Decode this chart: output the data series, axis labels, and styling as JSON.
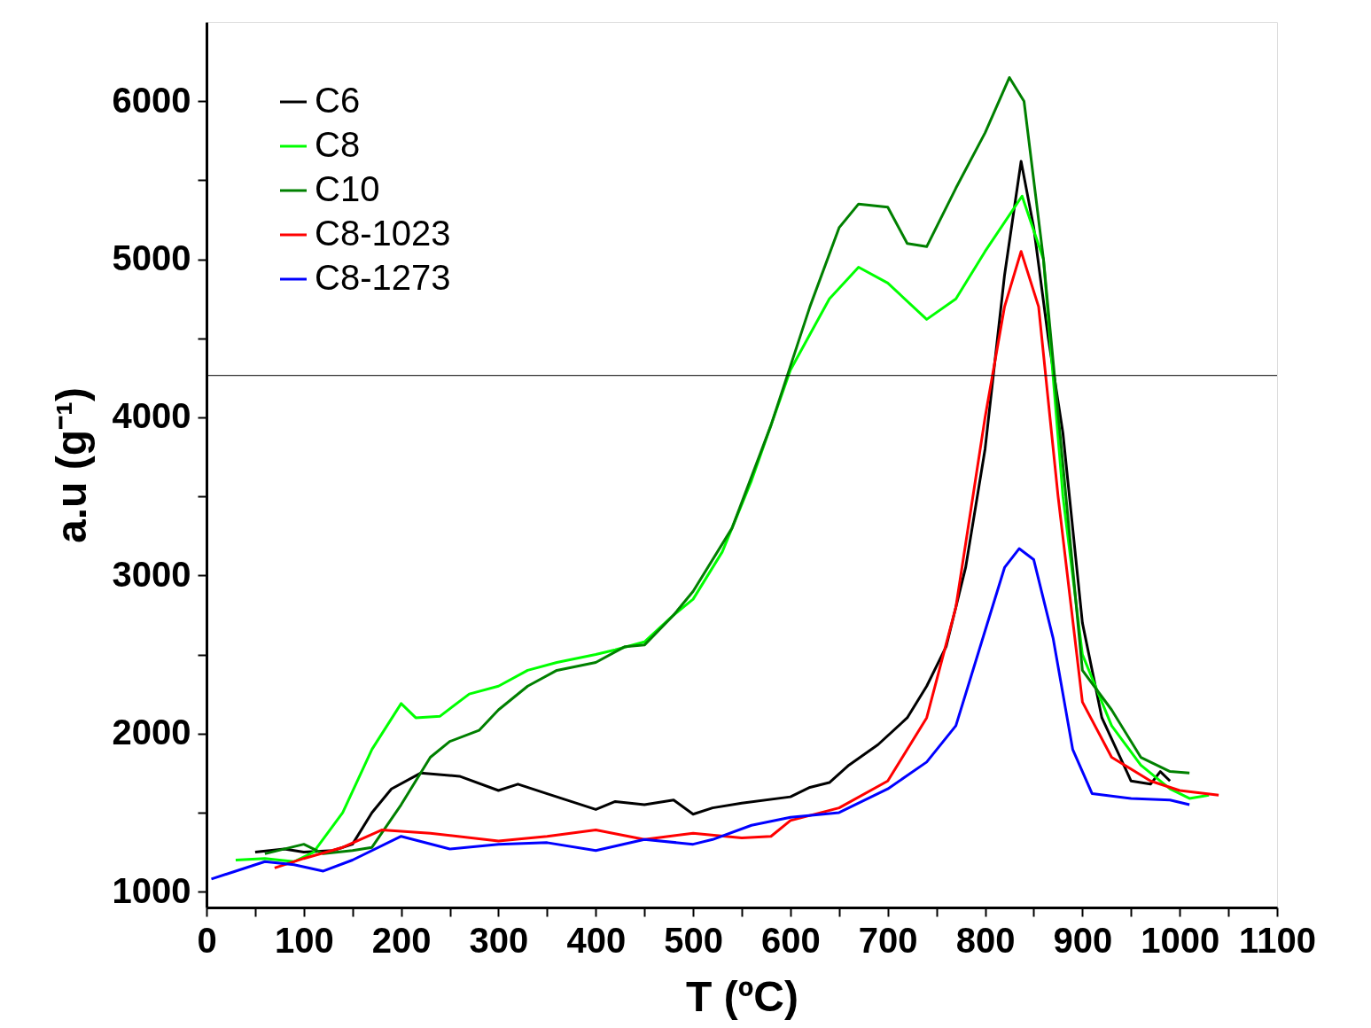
{
  "chart_data": {
    "type": "line",
    "xlabel": "T (ºC)",
    "ylabel": "a.u (g⁻¹)",
    "xlim": [
      0,
      1100
    ],
    "ylim": [
      900,
      6500
    ],
    "xticks": [
      0,
      {
        "value": 50,
        "label": null
      },
      100,
      {
        "value": 150,
        "label": null
      },
      200,
      {
        "value": 250,
        "label": null
      },
      300,
      {
        "value": 350,
        "label": null
      },
      400,
      {
        "value": 450,
        "label": null
      },
      500,
      {
        "value": 550,
        "label": null
      },
      600,
      {
        "value": 650,
        "label": null
      },
      700,
      {
        "value": 750,
        "label": null
      },
      800,
      {
        "value": 850,
        "label": null
      },
      900,
      {
        "value": 950,
        "label": null
      },
      1000,
      {
        "value": 1050,
        "label": null
      },
      1100
    ],
    "yticks": [
      1000,
      {
        "value": 1500,
        "label": null
      },
      2000,
      {
        "value": 2500,
        "label": null
      },
      3000,
      {
        "value": 3500,
        "label": null
      },
      4000,
      {
        "value": 4500,
        "label": null
      },
      5000,
      {
        "value": 5500,
        "label": null
      },
      6000
    ],
    "grid": false,
    "legend": "top left",
    "marker": "none",
    "line_style": "solid",
    "ref_lines": [
      {
        "axis": "y",
        "value": 4265,
        "label": null,
        "color": "#000000"
      }
    ],
    "series": [
      {
        "name": "C6",
        "color": "#000000",
        "x": [
          50,
          80,
          100,
          130,
          150,
          170,
          190,
          220,
          260,
          300,
          320,
          350,
          400,
          420,
          450,
          480,
          500,
          520,
          550,
          600,
          620,
          640,
          660,
          690,
          720,
          740,
          760,
          780,
          800,
          820,
          837,
          850,
          865,
          880,
          900,
          920,
          950,
          970,
          980,
          990
        ],
        "values": [
          1250,
          1270,
          1250,
          1260,
          1300,
          1500,
          1650,
          1750,
          1730,
          1640,
          1680,
          1620,
          1520,
          1570,
          1550,
          1580,
          1490,
          1530,
          1560,
          1600,
          1660,
          1690,
          1800,
          1930,
          2100,
          2300,
          2550,
          3050,
          3800,
          4900,
          5620,
          5200,
          4500,
          3900,
          2700,
          2100,
          1700,
          1680,
          1760,
          1700
        ]
      },
      {
        "name": "C8",
        "color": "#00ff00",
        "x": [
          30,
          60,
          90,
          110,
          140,
          170,
          200,
          215,
          240,
          270,
          300,
          330,
          360,
          400,
          420,
          450,
          480,
          500,
          530,
          560,
          600,
          640,
          670,
          700,
          740,
          770,
          800,
          838,
          860,
          880,
          900,
          930,
          960,
          990,
          1010,
          1030
        ],
        "values": [
          1200,
          1210,
          1190,
          1250,
          1500,
          1900,
          2190,
          2100,
          2110,
          2250,
          2300,
          2400,
          2450,
          2500,
          2530,
          2580,
          2750,
          2850,
          3150,
          3600,
          4300,
          4750,
          4950,
          4850,
          4620,
          4750,
          5050,
          5400,
          5000,
          3500,
          2500,
          2050,
          1800,
          1650,
          1590,
          1610
        ]
      },
      {
        "name": "C10",
        "color": "#008000",
        "x": [
          60,
          100,
          120,
          150,
          170,
          200,
          230,
          250,
          280,
          300,
          330,
          360,
          400,
          430,
          450,
          480,
          500,
          540,
          580,
          620,
          650,
          670,
          700,
          720,
          740,
          770,
          800,
          825,
          840,
          860,
          880,
          900,
          930,
          960,
          990,
          1010
        ],
        "values": [
          1240,
          1300,
          1240,
          1260,
          1280,
          1550,
          1850,
          1950,
          2020,
          2150,
          2300,
          2400,
          2450,
          2550,
          2560,
          2750,
          2900,
          3300,
          3950,
          4700,
          5200,
          5350,
          5330,
          5100,
          5080,
          5450,
          5800,
          6150,
          6000,
          5000,
          3700,
          2400,
          2150,
          1850,
          1760,
          1750
        ]
      },
      {
        "name": "C8-1023",
        "color": "#ff0000",
        "x": [
          70,
          100,
          140,
          180,
          230,
          300,
          350,
          400,
          450,
          500,
          550,
          580,
          600,
          650,
          700,
          740,
          770,
          800,
          820,
          837,
          855,
          875,
          900,
          930,
          970,
          1000,
          1040
        ],
        "values": [
          1150,
          1210,
          1280,
          1390,
          1370,
          1320,
          1350,
          1390,
          1330,
          1370,
          1340,
          1350,
          1450,
          1530,
          1700,
          2100,
          2800,
          4000,
          4700,
          5050,
          4700,
          3500,
          2200,
          1850,
          1700,
          1640,
          1610
        ]
      },
      {
        "name": "C8-1273",
        "color": "#0000ff",
        "x": [
          5,
          30,
          60,
          90,
          120,
          150,
          200,
          250,
          300,
          350,
          400,
          450,
          500,
          520,
          560,
          600,
          650,
          700,
          740,
          770,
          800,
          820,
          835,
          850,
          870,
          890,
          910,
          950,
          990,
          1010
        ],
        "values": [
          1080,
          1130,
          1190,
          1170,
          1130,
          1200,
          1350,
          1270,
          1300,
          1310,
          1260,
          1330,
          1300,
          1330,
          1420,
          1470,
          1500,
          1650,
          1820,
          2050,
          2650,
          3050,
          3170,
          3100,
          2600,
          1900,
          1620,
          1590,
          1580,
          1550
        ]
      }
    ]
  }
}
